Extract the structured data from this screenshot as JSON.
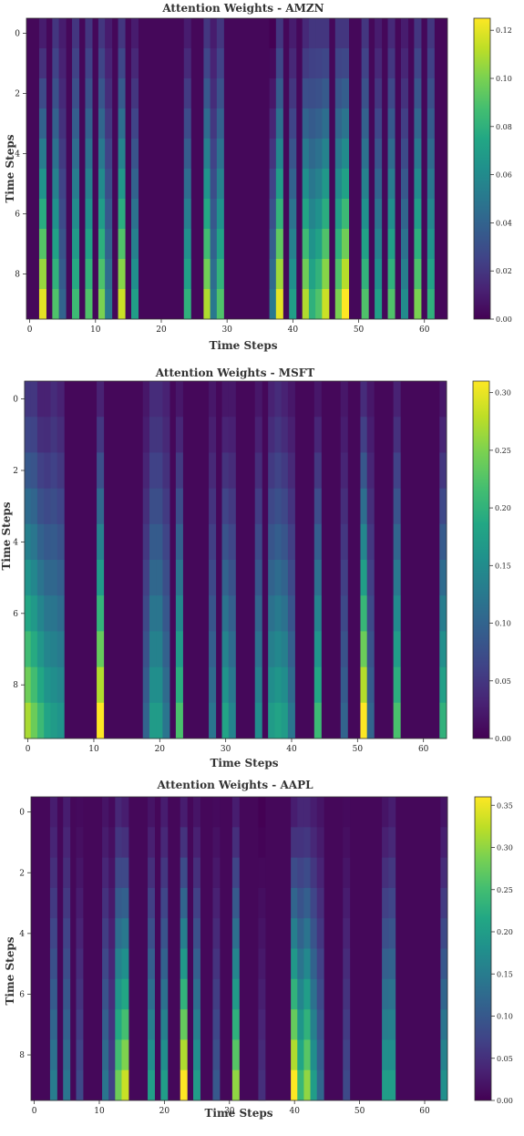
{
  "chart_data": [
    {
      "type": "heatmap",
      "title": "Attention Weights - AMZN",
      "xlabel": "Time Steps",
      "ylabel": "Time Steps",
      "x_range": [
        0,
        63
      ],
      "y_range": [
        0,
        9
      ],
      "x_ticks": [
        0,
        10,
        20,
        30,
        40,
        50,
        60
      ],
      "y_ticks": [
        0,
        2,
        4,
        6,
        8
      ],
      "colorbar": {
        "min": 0.0,
        "max": 0.125,
        "ticks": [
          0.0,
          0.02,
          0.04,
          0.06,
          0.08,
          0.1,
          0.12
        ],
        "tick_labels": [
          "0.00",
          "0.02",
          "0.04",
          "0.06",
          "0.08",
          "0.10",
          "0.12"
        ]
      },
      "colormap": "viridis",
      "columns": [
        {
          "x": 2,
          "start": 0.01,
          "end": 0.12
        },
        {
          "x": 4,
          "start": 0.02,
          "end": 0.09
        },
        {
          "x": 5,
          "start": 0.01,
          "end": 0.04
        },
        {
          "x": 7,
          "start": 0.02,
          "end": 0.085
        },
        {
          "x": 9,
          "start": 0.02,
          "end": 0.09
        },
        {
          "x": 11,
          "start": 0.02,
          "end": 0.1
        },
        {
          "x": 12,
          "start": 0.01,
          "end": 0.05
        },
        {
          "x": 14,
          "start": 0.02,
          "end": 0.115
        },
        {
          "x": 16,
          "start": 0.01,
          "end": 0.07
        },
        {
          "x": 24,
          "start": 0.01,
          "end": 0.08
        },
        {
          "x": 27,
          "start": 0.02,
          "end": 0.11
        },
        {
          "x": 28,
          "start": 0.01,
          "end": 0.05
        },
        {
          "x": 29,
          "start": 0.02,
          "end": 0.09
        },
        {
          "x": 37,
          "start": 0.0,
          "end": 0.05
        },
        {
          "x": 38,
          "start": 0.02,
          "end": 0.12
        },
        {
          "x": 40,
          "start": 0.01,
          "end": 0.07
        },
        {
          "x": 42,
          "start": 0.015,
          "end": 0.11
        },
        {
          "x": 43,
          "start": 0.02,
          "end": 0.08
        },
        {
          "x": 44,
          "start": 0.02,
          "end": 0.09
        },
        {
          "x": 45,
          "start": 0.02,
          "end": 0.115
        },
        {
          "x": 47,
          "start": 0.02,
          "end": 0.1
        },
        {
          "x": 48,
          "start": 0.02,
          "end": 0.125
        },
        {
          "x": 51,
          "start": 0.02,
          "end": 0.09
        },
        {
          "x": 53,
          "start": 0.01,
          "end": 0.07
        },
        {
          "x": 55,
          "start": 0.015,
          "end": 0.09
        },
        {
          "x": 57,
          "start": 0.01,
          "end": 0.06
        },
        {
          "x": 59,
          "start": 0.02,
          "end": 0.1
        },
        {
          "x": 61,
          "start": 0.02,
          "end": 0.08
        }
      ]
    },
    {
      "type": "heatmap",
      "title": "Attention Weights -  MSFT",
      "xlabel": "Time Steps",
      "ylabel": "Time Steps",
      "x_range": [
        0,
        63
      ],
      "y_range": [
        0,
        9
      ],
      "x_ticks": [
        0,
        10,
        20,
        30,
        40,
        50,
        60
      ],
      "y_ticks": [
        0,
        2,
        4,
        6,
        8
      ],
      "colorbar": {
        "min": 0.0,
        "max": 0.31,
        "ticks": [
          0.0,
          0.05,
          0.1,
          0.15,
          0.2,
          0.25,
          0.3
        ],
        "tick_labels": [
          "0.00",
          "0.05",
          "0.10",
          "0.15",
          "0.20",
          "0.25",
          "0.30"
        ]
      },
      "colormap": "viridis",
      "columns": [
        {
          "x": 0,
          "start": 0.05,
          "end": 0.27
        },
        {
          "x": 1,
          "start": 0.05,
          "end": 0.24
        },
        {
          "x": 2,
          "start": 0.03,
          "end": 0.21
        },
        {
          "x": 3,
          "start": 0.03,
          "end": 0.18
        },
        {
          "x": 4,
          "start": 0.04,
          "end": 0.17
        },
        {
          "x": 5,
          "start": 0.03,
          "end": 0.16
        },
        {
          "x": 11,
          "start": 0.03,
          "end": 0.31
        },
        {
          "x": 18,
          "start": 0.02,
          "end": 0.1
        },
        {
          "x": 19,
          "start": 0.04,
          "end": 0.17
        },
        {
          "x": 20,
          "start": 0.04,
          "end": 0.17
        },
        {
          "x": 21,
          "start": 0.03,
          "end": 0.12
        },
        {
          "x": 23,
          "start": 0.02,
          "end": 0.22
        },
        {
          "x": 28,
          "start": 0.02,
          "end": 0.12
        },
        {
          "x": 30,
          "start": 0.02,
          "end": 0.18
        },
        {
          "x": 31,
          "start": 0.02,
          "end": 0.14
        },
        {
          "x": 35,
          "start": 0.02,
          "end": 0.15
        },
        {
          "x": 37,
          "start": 0.03,
          "end": 0.17
        },
        {
          "x": 38,
          "start": 0.04,
          "end": 0.18
        },
        {
          "x": 39,
          "start": 0.03,
          "end": 0.17
        },
        {
          "x": 40,
          "start": 0.02,
          "end": 0.12
        },
        {
          "x": 44,
          "start": 0.02,
          "end": 0.21
        },
        {
          "x": 48,
          "start": 0.02,
          "end": 0.1
        },
        {
          "x": 51,
          "start": 0.04,
          "end": 0.31
        },
        {
          "x": 52,
          "start": 0.02,
          "end": 0.1
        },
        {
          "x": 56,
          "start": 0.03,
          "end": 0.22
        },
        {
          "x": 63,
          "start": 0.02,
          "end": 0.2
        }
      ]
    },
    {
      "type": "heatmap",
      "title": "Attention Weights -  AAPL",
      "xlabel": "Time Steps",
      "ylabel": "Time Steps",
      "x_range": [
        0,
        63
      ],
      "y_range": [
        0,
        9
      ],
      "x_ticks": [
        0,
        10,
        20,
        30,
        40,
        50,
        60
      ],
      "y_ticks": [
        0,
        2,
        4,
        6,
        8
      ],
      "colorbar": {
        "min": 0.0,
        "max": 0.36,
        "ticks": [
          0.0,
          0.05,
          0.1,
          0.15,
          0.2,
          0.25,
          0.3,
          0.35
        ],
        "tick_labels": [
          "0.00",
          "0.05",
          "0.10",
          "0.15",
          "0.20",
          "0.25",
          "0.30",
          "0.35"
        ]
      },
      "colormap": "viridis",
      "columns": [
        {
          "x": 3,
          "start": 0.03,
          "end": 0.15
        },
        {
          "x": 5,
          "start": 0.03,
          "end": 0.14
        },
        {
          "x": 7,
          "start": 0.01,
          "end": 0.08
        },
        {
          "x": 11,
          "start": 0.02,
          "end": 0.14
        },
        {
          "x": 12,
          "start": 0.01,
          "end": 0.07
        },
        {
          "x": 13,
          "start": 0.04,
          "end": 0.28
        },
        {
          "x": 14,
          "start": 0.03,
          "end": 0.33
        },
        {
          "x": 18,
          "start": 0.02,
          "end": 0.2
        },
        {
          "x": 20,
          "start": 0.03,
          "end": 0.2
        },
        {
          "x": 23,
          "start": 0.03,
          "end": 0.36
        },
        {
          "x": 25,
          "start": 0.02,
          "end": 0.2
        },
        {
          "x": 28,
          "start": 0.01,
          "end": 0.1
        },
        {
          "x": 31,
          "start": 0.03,
          "end": 0.3
        },
        {
          "x": 35,
          "start": 0.0,
          "end": 0.05
        },
        {
          "x": 40,
          "start": 0.03,
          "end": 0.36
        },
        {
          "x": 41,
          "start": 0.04,
          "end": 0.24
        },
        {
          "x": 42,
          "start": 0.04,
          "end": 0.3
        },
        {
          "x": 43,
          "start": 0.03,
          "end": 0.2
        },
        {
          "x": 44,
          "start": 0.02,
          "end": 0.12
        },
        {
          "x": 48,
          "start": 0.01,
          "end": 0.08
        },
        {
          "x": 54,
          "start": 0.02,
          "end": 0.2
        },
        {
          "x": 55,
          "start": 0.03,
          "end": 0.2
        },
        {
          "x": 63,
          "start": 0.02,
          "end": 0.18
        }
      ]
    }
  ]
}
